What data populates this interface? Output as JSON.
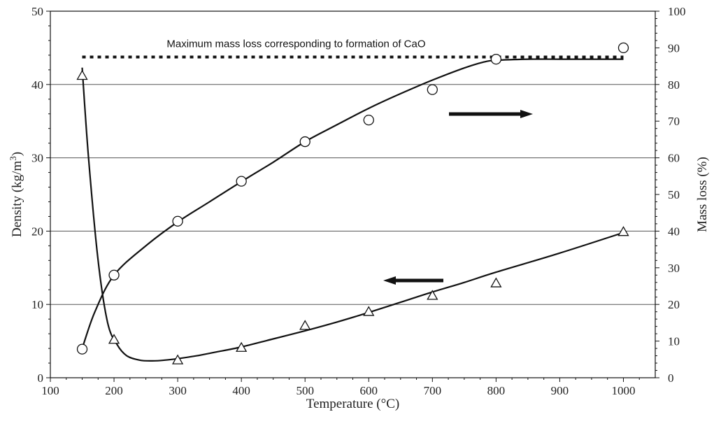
{
  "chart_data": {
    "type": "scatter",
    "xlabel": "Temperature (°C)",
    "ylabel_left_prefix": "Density (kg/m",
    "ylabel_left_sup": "3",
    "ylabel_left_suffix": ")",
    "ylabel_right": "Mass loss (%)",
    "xlim": [
      100,
      1050
    ],
    "ylim_left": [
      0,
      50
    ],
    "ylim_right": [
      0,
      100
    ],
    "x_ticks": [
      100,
      200,
      300,
      400,
      500,
      600,
      700,
      800,
      900,
      1000
    ],
    "y_left_ticks": [
      0,
      10,
      20,
      30,
      40,
      50
    ],
    "y_right_ticks": [
      0,
      10,
      20,
      30,
      40,
      50,
      60,
      70,
      80,
      90,
      100
    ],
    "grid": "horizontal",
    "annotation": "Maximum mass loss corresponding to formation of CaO",
    "reference_line_right_value": 87.5,
    "series": [
      {
        "axis": "left",
        "marker": "triangle",
        "x": [
          150,
          200,
          300,
          400,
          500,
          600,
          700,
          800,
          1000
        ],
        "y": [
          41.2,
          5.2,
          2.4,
          4.1,
          7.1,
          9.0,
          11.2,
          12.9,
          19.9
        ],
        "curve_x": [
          150,
          160,
          175,
          190,
          205,
          220,
          240,
          260,
          280,
          300,
          330,
          360,
          400,
          450,
          500,
          550,
          600,
          650,
          700,
          750,
          800,
          900,
          1000
        ],
        "curve_y": [
          42.3,
          30,
          16,
          7.5,
          4.5,
          3.0,
          2.4,
          2.3,
          2.4,
          2.6,
          3.0,
          3.5,
          4.2,
          5.3,
          6.4,
          7.6,
          8.9,
          10.3,
          11.7,
          13.0,
          14.4,
          17.0,
          19.8
        ]
      },
      {
        "axis": "right",
        "marker": "circle",
        "x": [
          150,
          200,
          300,
          400,
          500,
          600,
          700,
          800,
          1000
        ],
        "y": [
          7.8,
          28.0,
          42.7,
          53.6,
          64.4,
          70.3,
          78.6,
          86.9,
          90.0
        ],
        "curve_x": [
          150,
          170,
          200,
          250,
          300,
          350,
          400,
          450,
          500,
          550,
          600,
          650,
          700,
          750,
          780,
          800,
          850,
          900,
          950,
          1000
        ],
        "curve_y": [
          8.0,
          18.0,
          28.0,
          36.0,
          42.5,
          48.0,
          53.5,
          58.8,
          64.4,
          69.0,
          73.5,
          77.5,
          81.2,
          84.5,
          86.1,
          86.6,
          86.9,
          86.9,
          86.9,
          86.9
        ]
      }
    ]
  }
}
